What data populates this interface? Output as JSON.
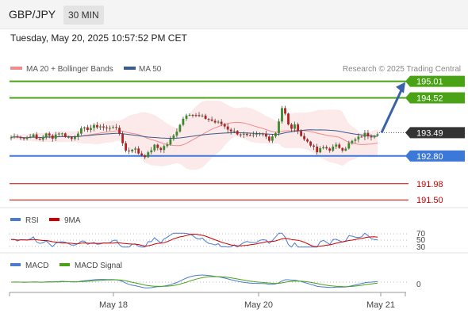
{
  "header": {
    "pair": "GBP/JPY",
    "timeframe": "30 MIN"
  },
  "datetime": "Tuesday, May 20, 2025 10:57:52 PM CET",
  "legend": {
    "ma20": {
      "label": "MA 20 + Bollinger Bands",
      "color": "#f08c8c"
    },
    "ma50": {
      "label": "MA 50",
      "color": "#3a5b8c"
    }
  },
  "credit": "Research © 2025 Trading Central",
  "chart_data": [
    {
      "type": "candlestick",
      "title": "GBP/JPY",
      "ylim": [
        191.2,
        195.4
      ],
      "current_price": 193.49,
      "levels": [
        {
          "value": 195.01,
          "label": "195.01",
          "kind": "resistance",
          "color": "#4aa316"
        },
        {
          "value": 194.52,
          "label": "194.52",
          "kind": "resistance",
          "color": "#4aa316"
        },
        {
          "value": 192.8,
          "label": "192.80",
          "kind": "pivot",
          "color": "#3c78d8"
        },
        {
          "value": 191.98,
          "label": "191.98",
          "kind": "support",
          "color": "#cc0000"
        },
        {
          "value": 191.5,
          "label": "191.50",
          "kind": "support",
          "color": "#cc0000"
        }
      ],
      "arrow": {
        "from": 193.49,
        "to": 195.01,
        "color": "#3a62a8"
      },
      "x_ticks": [
        "May 18",
        "May 20",
        "May 21"
      ],
      "close_path": [
        193.35,
        193.4,
        193.3,
        193.45,
        193.25,
        193.45,
        193.35,
        193.5,
        193.4,
        193.3,
        193.55,
        193.6,
        193.65,
        193.7,
        193.6,
        193.7,
        193.45,
        192.9,
        193.05,
        192.85,
        192.8,
        193.1,
        193.0,
        193.15,
        193.4,
        193.8,
        194.1,
        194.0,
        193.95,
        193.9,
        193.8,
        193.75,
        193.6,
        193.5,
        193.45,
        193.35,
        193.4,
        193.45,
        193.3,
        193.5,
        194.3,
        193.6,
        193.7,
        193.3,
        193.2,
        192.9,
        193.05,
        193.0,
        193.1,
        193.0,
        193.2,
        193.3,
        193.45,
        193.4,
        193.5
      ]
    },
    {
      "type": "line",
      "title": "RSI",
      "series": [
        {
          "name": "RSI",
          "color": "#4a7bd0"
        },
        {
          "name": "9MA",
          "color": "#cc0000"
        }
      ],
      "levels": [
        "70",
        "50",
        "30"
      ]
    },
    {
      "type": "line",
      "title": "MACD",
      "series": [
        {
          "name": "MACD",
          "color": "#4a7bd0"
        },
        {
          "name": "MACD Signal",
          "color": "#4aa316"
        }
      ],
      "levels": [
        "0"
      ]
    }
  ]
}
